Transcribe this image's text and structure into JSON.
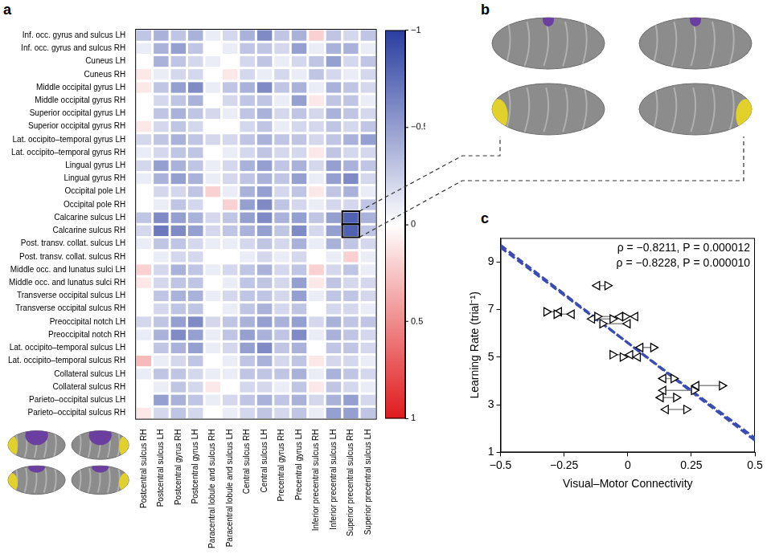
{
  "chart_data": [
    {
      "panel": "a",
      "type": "heatmap",
      "grid": false,
      "rows": [
        "Inf. occ. gyrus and sulcus LH",
        "Inf. occ. gyrus and sulcus RH",
        "Cuneus LH",
        "Cuneus RH",
        "Middle occipital gyrus LH",
        "Middle occipital gyrus RH",
        "Superior occipital gyrus LH",
        "Superior occipital gyrus RH",
        "Lat. occipito–temporal gyrus LH",
        "Lat. occipito–temporal gyrus RH",
        "Lingual gyrus LH",
        "Lingual gyrus RH",
        "Occipital pole LH",
        "Occipital pole RH",
        "Calcarine sulcus LH",
        "Calcarine sulcus RH",
        "Post. transv. collat. sulcus LH",
        "Post. transv. collat. sulcus RH",
        "Middle occ. and lunatus sulci LH",
        "Middle occ. and lunatus sulci RH",
        "Transverse occipital sulcus LH",
        "Transverse occipital sulcus RH",
        "Preoccipital notch LH",
        "Preoccipital notch RH",
        "Lat. occipito–temporal sulcus LH",
        "Lat. occipito–temporal sulcus RH",
        "Collateral sulcus LH",
        "Collateral sulcus RH",
        "Parieto–occipital sulcus LH",
        "Parieto–occipital sulcus RH"
      ],
      "columns": [
        "Postcentral sulcus RH",
        "Postcentral sulcus LH",
        "Postcentral gyrus RH",
        "Postcentral gyrus LH",
        "Paracentral lobule and sulcus RH",
        "Paracentral lobule and sulcus LH",
        "Central sulcus RH",
        "Central sulcus LH",
        "Precentral gyrus RH",
        "Precentral gyrus LH",
        "Inferior precentral sulcus RH",
        "Inferior precentral sulcus LH",
        "Superior precentral sulcus RH",
        "Superior precentral sulcus LH"
      ],
      "cells": [
        [
          -0.3,
          -0.4,
          -0.3,
          -0.4,
          -0.1,
          -0.2,
          -0.4,
          -0.6,
          -0.3,
          -0.4,
          0.2,
          -0.3,
          -0.2,
          -0.3
        ],
        [
          -0.1,
          -0.4,
          -0.5,
          -0.3,
          0,
          -0.1,
          -0.3,
          -0.3,
          -0.2,
          -0.5,
          -0.1,
          -0.4,
          -0.4,
          -0.1
        ],
        [
          0,
          -0.4,
          -0.3,
          -0.2,
          -0.1,
          0,
          -0.2,
          -0.3,
          -0.1,
          -0.2,
          -0.3,
          -0.5,
          -0.2,
          -0.3
        ],
        [
          0.1,
          -0.1,
          -0.2,
          -0.2,
          0,
          0.1,
          -0.2,
          -0.1,
          -0.2,
          -0.1,
          -0.3,
          -0.2,
          -0.1,
          -0.2
        ],
        [
          0.1,
          -0.3,
          -0.5,
          -0.6,
          -0.1,
          -0.3,
          -0.4,
          -0.6,
          -0.3,
          -0.4,
          -0.1,
          -0.4,
          -0.3,
          -0.2
        ],
        [
          0,
          -0.2,
          -0.3,
          -0.4,
          0,
          -0.2,
          -0.3,
          -0.3,
          -0.1,
          -0.5,
          0.1,
          -0.3,
          -0.3,
          -0.1
        ],
        [
          0,
          -0.3,
          -0.4,
          -0.3,
          -0.2,
          -0.1,
          -0.3,
          -0.4,
          -0.2,
          -0.3,
          -0.2,
          -0.4,
          -0.3,
          -0.2
        ],
        [
          0.1,
          -0.2,
          -0.3,
          -0.2,
          0,
          0,
          -0.2,
          -0.3,
          -0.1,
          -0.2,
          -0.2,
          -0.3,
          -0.2,
          -0.3
        ],
        [
          -0.2,
          -0.3,
          -0.4,
          -0.3,
          -0.2,
          -0.2,
          -0.3,
          -0.4,
          -0.3,
          -0.3,
          -0.2,
          -0.3,
          -0.4,
          -0.5
        ],
        [
          -0.1,
          -0.2,
          -0.3,
          -0.3,
          0,
          -0.1,
          -0.2,
          -0.3,
          -0.2,
          -0.2,
          0.1,
          -0.3,
          -0.2,
          -0.2
        ],
        [
          -0.2,
          -0.5,
          -0.4,
          -0.3,
          -0.1,
          -0.2,
          -0.4,
          -0.5,
          -0.3,
          -0.4,
          -0.2,
          -0.5,
          -0.4,
          -0.3
        ],
        [
          -0.1,
          -0.4,
          -0.5,
          -0.4,
          -0.1,
          -0.2,
          -0.3,
          -0.4,
          -0.3,
          -0.5,
          -0.1,
          -0.5,
          -0.6,
          -0.2
        ],
        [
          0,
          -0.2,
          -0.2,
          -0.3,
          0.2,
          -0.1,
          -0.4,
          -0.5,
          -0.2,
          -0.3,
          0.1,
          -0.3,
          -0.4,
          -0.1
        ],
        [
          0,
          -0.1,
          -0.3,
          -0.2,
          0,
          0.2,
          -0.5,
          -0.6,
          -0.3,
          -0.2,
          -0.1,
          -0.2,
          -0.2,
          -0.3
        ],
        [
          -0.3,
          -0.6,
          -0.5,
          -0.4,
          -0.2,
          -0.3,
          -0.5,
          -0.6,
          -0.4,
          -0.5,
          -0.3,
          -0.5,
          -0.82,
          -0.4
        ],
        [
          -0.2,
          -0.7,
          -0.6,
          -0.5,
          -0.2,
          -0.3,
          -0.4,
          -0.5,
          -0.3,
          -0.6,
          -0.2,
          -0.5,
          -0.82,
          -0.3
        ],
        [
          -0.1,
          -0.3,
          -0.3,
          -0.2,
          -0.1,
          -0.1,
          -0.2,
          -0.3,
          -0.2,
          -0.4,
          -0.1,
          -0.4,
          -0.3,
          -0.2
        ],
        [
          0,
          -0.1,
          -0.2,
          -0.2,
          0,
          0,
          -0.1,
          -0.2,
          -0.1,
          -0.2,
          0,
          -0.1,
          0.2,
          -0.1
        ],
        [
          0.2,
          -0.2,
          -0.4,
          -0.3,
          -0.1,
          -0.2,
          -0.3,
          -0.4,
          -0.2,
          -0.3,
          0.2,
          -0.2,
          -0.3,
          -0.1
        ],
        [
          0.1,
          -0.2,
          -0.3,
          -0.3,
          0,
          -0.1,
          -0.3,
          -0.3,
          -0.2,
          -0.5,
          0.1,
          -0.3,
          -0.2,
          -0.2
        ],
        [
          0,
          -0.3,
          -0.4,
          -0.4,
          -0.1,
          -0.2,
          -0.3,
          -0.3,
          -0.2,
          -0.5,
          -0.1,
          -0.3,
          -0.3,
          -0.2
        ],
        [
          0,
          -0.2,
          -0.3,
          -0.3,
          0,
          -0.1,
          -0.3,
          -0.4,
          -0.2,
          -0.3,
          0,
          -0.2,
          -0.2,
          -0.1
        ],
        [
          -0.2,
          -0.3,
          -0.5,
          -0.6,
          -0.2,
          -0.3,
          -0.4,
          -0.5,
          -0.4,
          -0.5,
          -0.2,
          -0.4,
          -0.3,
          -0.3
        ],
        [
          -0.1,
          -0.4,
          -0.6,
          -0.5,
          -0.1,
          -0.3,
          -0.5,
          -0.4,
          -0.3,
          -0.6,
          -0.1,
          -0.4,
          -0.3,
          -0.2
        ],
        [
          0,
          -0.3,
          -0.4,
          -0.5,
          -0.1,
          -0.2,
          -0.5,
          -0.6,
          -0.3,
          -0.4,
          0,
          -0.3,
          -0.3,
          -0.2
        ],
        [
          0.3,
          -0.1,
          -0.2,
          -0.3,
          0,
          -0.1,
          -0.3,
          -0.4,
          -0.2,
          -0.3,
          0.1,
          -0.2,
          -0.2,
          -0.1
        ],
        [
          -0.1,
          -0.3,
          -0.3,
          -0.2,
          -0.1,
          -0.1,
          -0.3,
          -0.3,
          -0.3,
          -0.4,
          -0.1,
          -0.4,
          -0.3,
          -0.2
        ],
        [
          0,
          -0.1,
          -0.3,
          -0.2,
          0.1,
          0,
          -0.2,
          -0.2,
          -0.1,
          -0.3,
          0.1,
          -0.3,
          -0.2,
          -0.1
        ],
        [
          0,
          -0.5,
          -0.4,
          -0.3,
          -0.1,
          -0.2,
          -0.3,
          -0.4,
          -0.3,
          -0.4,
          -0.2,
          -0.4,
          -0.5,
          -0.2
        ],
        [
          0.1,
          -0.2,
          -0.3,
          -0.2,
          0,
          -0.1,
          -0.2,
          -0.3,
          -0.2,
          -0.3,
          -0.1,
          -0.5,
          -0.5,
          -0.3
        ]
      ],
      "colorbar": {
        "range": [
          -1,
          1
        ],
        "ticks": [
          {
            "value": -1,
            "label": "−1"
          },
          {
            "value": -0.5,
            "label": "−0.5"
          },
          0,
          0.5,
          1
        ]
      },
      "highlighted_cells": [
        {
          "row": "Calcarine sulcus LH",
          "column": "Superior precentral sulcus RH"
        },
        {
          "row": "Calcarine sulcus RH",
          "column": "Superior precentral sulcus RH"
        }
      ]
    },
    {
      "panel": "c",
      "type": "scatter",
      "grid": false,
      "x_label": "Visual–Motor Connectivity",
      "y_label": "Learning Rate (trial⁻¹)",
      "xlim": [
        -0.5,
        0.5
      ],
      "ylim": [
        1,
        10
      ],
      "xticks": [
        {
          "value": -0.5,
          "label": "−0.5"
        },
        {
          "value": -0.25,
          "label": "−0.25"
        },
        0,
        0.25,
        0.5
      ],
      "yticks": [
        1,
        3,
        5,
        7,
        9
      ],
      "annotations": [
        "ρ = −0.8211, P = 0.000012",
        "ρ = −0.8228, P = 0.000010"
      ],
      "series": [
        {
          "type": "scatter",
          "marker": "triangle-right",
          "color": "#000000",
          "x": [
            -0.08,
            -0.32,
            -0.28,
            -0.12,
            -0.06,
            -0.1,
            -0.01,
            0.1,
            -0.06,
            -0.02,
            0.18,
            0.37,
            0.26,
            0.19,
            0.23
          ],
          "values": [
            8.0,
            6.9,
            6.8,
            6.7,
            6.6,
            6.4,
            6.7,
            5.4,
            5.1,
            5.0,
            4.1,
            3.8,
            3.6,
            3.3,
            2.8
          ]
        },
        {
          "type": "scatter",
          "marker": "triangle-left",
          "color": "#000000",
          "x": [
            -0.12,
            -0.27,
            -0.22,
            -0.03,
            -0.14,
            0,
            0.03,
            0.05,
            0.01,
            0.04,
            0.14,
            0.27,
            0.14,
            0.13,
            0.15
          ],
          "values": [
            8.0,
            6.9,
            6.8,
            6.7,
            6.6,
            6.4,
            6.7,
            5.4,
            5.1,
            5.0,
            4.1,
            3.8,
            3.6,
            3.3,
            2.8
          ]
        },
        {
          "type": "line",
          "line_style": "dashed",
          "color": "#3a4bb5",
          "x": [
            -0.5,
            0.5
          ],
          "values": [
            9.7,
            1.5
          ]
        },
        {
          "type": "line",
          "line_style": "dashed",
          "color": "#3a4bb5",
          "x": [
            -0.5,
            0.5
          ],
          "values": [
            9.6,
            1.6
          ]
        }
      ]
    }
  ],
  "image_panel": {
    "panel": "b"
  }
}
